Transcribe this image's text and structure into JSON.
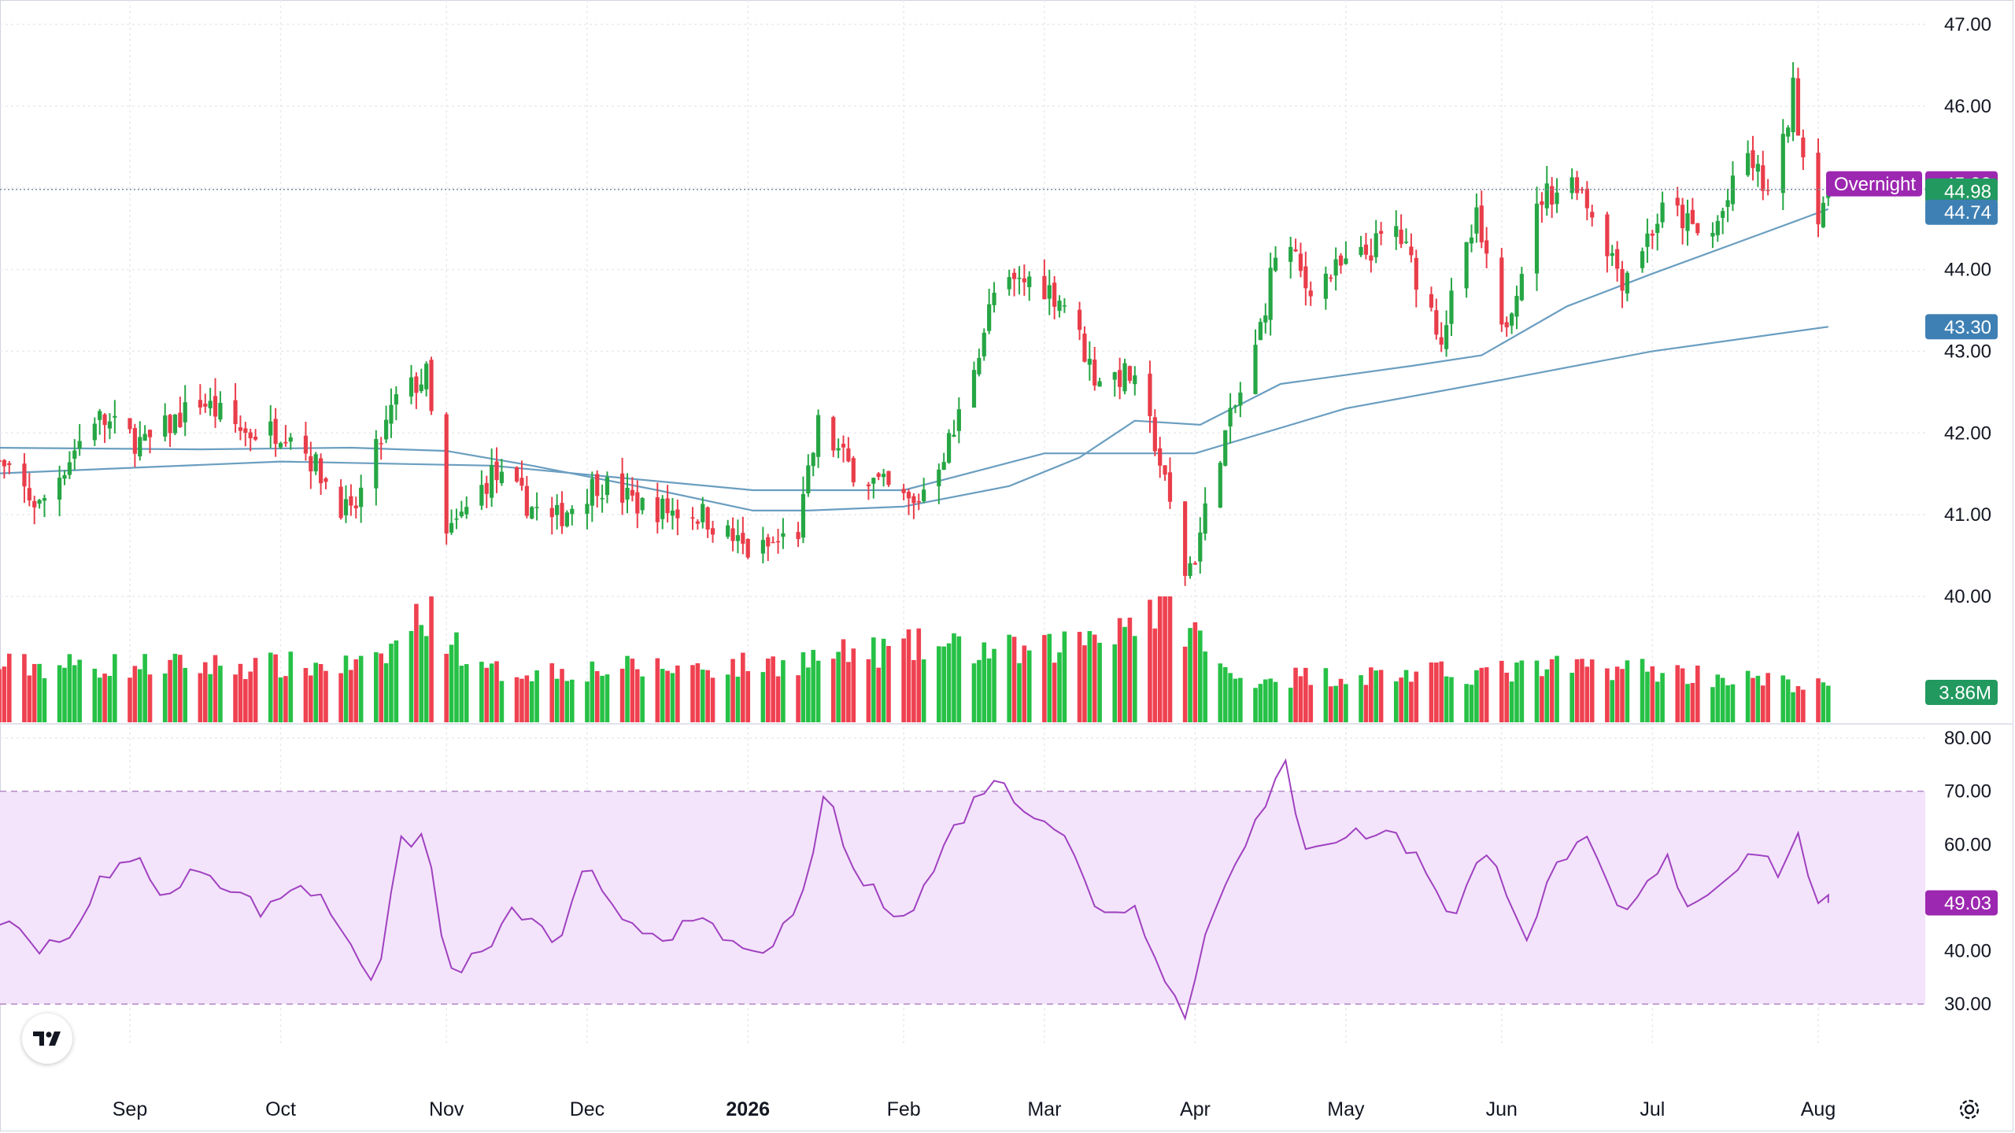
{
  "colors": {
    "up": "#26a644",
    "down": "#e93d4a",
    "volume_up": "#26c146",
    "volume_down": "#ef4150",
    "ma": "#6a9ec0",
    "rsi": "#a041c0",
    "rsi_band": "#f3e4fb",
    "overnight_badge": "#9c27b0",
    "close_badge": "#22995f",
    "ma_badge": "#3f80b4",
    "grid": "#e8eaee"
  },
  "icons": {
    "logo": "tradingview-logo-icon",
    "settings": "gear-icon"
  },
  "chart_data": [
    {
      "type": "candlestick",
      "panel": "price",
      "yaxis_ticks": [
        "47.00",
        "46.00",
        "45.00",
        "44.00",
        "43.00",
        "42.00",
        "41.00",
        "40.00"
      ],
      "ylim": [
        39.48,
        47.0
      ],
      "x_labels": [
        "Sep",
        "Oct",
        "Nov",
        "Dec",
        "2026",
        "Feb",
        "Mar",
        "Apr",
        "May",
        "Jun",
        "Jul",
        "Aug"
      ],
      "x_label_dates": [
        "2025-09-01",
        "2025-10-01",
        "2025-11-03",
        "2025-12-01",
        "2026-01-02",
        "2026-02-02",
        "2026-03-02",
        "2026-04-01",
        "2026-05-01",
        "2026-06-01",
        "2026-07-01",
        "2026-08-03"
      ],
      "x_range": [
        "2025-08-04",
        "2026-08-31"
      ],
      "price_path": [
        [
          "2025-08-04",
          41.7
        ],
        [
          "2025-08-14",
          41.1
        ],
        [
          "2025-08-25",
          42.2
        ],
        [
          "2025-09-04",
          41.85
        ],
        [
          "2025-09-15",
          42.4
        ],
        [
          "2025-09-24",
          42.0
        ],
        [
          "2025-10-03",
          42.05
        ],
        [
          "2025-10-15",
          40.95
        ],
        [
          "2025-10-24",
          42.4
        ],
        [
          "2025-10-30",
          42.7
        ],
        [
          "2025-11-03",
          40.7
        ],
        [
          "2025-11-12",
          41.5
        ],
        [
          "2025-11-24",
          40.9
        ],
        [
          "2025-12-03",
          41.4
        ],
        [
          "2025-12-12",
          41.1
        ],
        [
          "2025-12-24",
          41.0
        ],
        [
          "2026-01-03",
          40.5
        ],
        [
          "2026-01-12",
          40.8
        ],
        [
          "2026-01-16",
          42.1
        ],
        [
          "2026-01-22",
          41.6
        ],
        [
          "2026-02-04",
          41.1
        ],
        [
          "2026-02-12",
          42.0
        ],
        [
          "2026-02-20",
          43.7
        ],
        [
          "2026-02-28",
          43.9
        ],
        [
          "2026-03-06",
          43.6
        ],
        [
          "2026-03-12",
          42.7
        ],
        [
          "2026-03-19",
          42.7
        ],
        [
          "2026-03-24",
          41.9
        ],
        [
          "2026-03-30",
          40.3
        ],
        [
          "2026-04-01",
          40.5
        ],
        [
          "2026-04-06",
          41.8
        ],
        [
          "2026-04-13",
          43.0
        ],
        [
          "2026-04-18",
          44.5
        ],
        [
          "2026-04-23",
          43.8
        ],
        [
          "2026-05-03",
          44.1
        ],
        [
          "2026-05-11",
          44.5
        ],
        [
          "2026-05-20",
          43.2
        ],
        [
          "2026-05-27",
          44.6
        ],
        [
          "2026-06-01",
          43.2
        ],
        [
          "2026-06-09",
          44.9
        ],
        [
          "2026-06-16",
          45.1
        ],
        [
          "2026-06-25",
          43.9
        ],
        [
          "2026-07-04",
          44.8
        ],
        [
          "2026-07-12",
          44.3
        ],
        [
          "2026-07-20",
          45.4
        ],
        [
          "2026-07-25",
          44.8
        ],
        [
          "2026-07-29",
          46.2
        ],
        [
          "2026-08-02",
          44.6
        ],
        [
          "2026-08-05",
          44.98
        ]
      ],
      "moving_averages": [
        {
          "period": "50",
          "last_value": "44.74",
          "points": [
            [
              "2025-08-04",
              41.82
            ],
            [
              "2025-09-15",
              41.8
            ],
            [
              "2025-10-15",
              41.82
            ],
            [
              "2025-11-03",
              41.78
            ],
            [
              "2025-11-20",
              41.6
            ],
            [
              "2025-12-15",
              41.3
            ],
            [
              "2026-01-03",
              41.05
            ],
            [
              "2026-01-14",
              41.05
            ],
            [
              "2026-02-02",
              41.1
            ],
            [
              "2026-02-23",
              41.35
            ],
            [
              "2026-03-09",
              41.7
            ],
            [
              "2026-03-20",
              42.15
            ],
            [
              "2026-04-02",
              42.1
            ],
            [
              "2026-04-18",
              42.6
            ],
            [
              "2026-05-14",
              42.82
            ],
            [
              "2026-05-28",
              42.95
            ],
            [
              "2026-06-14",
              43.55
            ],
            [
              "2026-07-01",
              43.95
            ],
            [
              "2026-07-21",
              44.4
            ],
            [
              "2026-08-05",
              44.74
            ]
          ]
        },
        {
          "period": "200",
          "last_value": "43.30",
          "points": [
            [
              "2025-08-04",
              41.5
            ],
            [
              "2025-10-01",
              41.65
            ],
            [
              "2025-11-12",
              41.6
            ],
            [
              "2026-01-03",
              41.3
            ],
            [
              "2026-02-02",
              41.3
            ],
            [
              "2026-03-02",
              41.75
            ],
            [
              "2026-04-01",
              41.75
            ],
            [
              "2026-05-01",
              42.3
            ],
            [
              "2026-06-01",
              42.65
            ],
            [
              "2026-07-01",
              43.0
            ],
            [
              "2026-08-05",
              43.3
            ]
          ]
        }
      ],
      "last_close": "44.98",
      "overnight_label": "Overnight",
      "overnight_price": "45.03"
    },
    {
      "type": "bar",
      "panel": "volume",
      "last_volume": "3.86M",
      "relative_volume_path": [
        [
          "2025-08-04",
          0.45
        ],
        [
          "2025-10-20",
          0.45
        ],
        [
          "2025-10-30",
          0.9
        ],
        [
          "2025-11-10",
          0.4
        ],
        [
          "2026-01-03",
          0.45
        ],
        [
          "2026-02-05",
          0.6
        ],
        [
          "2026-03-01",
          0.55
        ],
        [
          "2026-03-27",
          0.95
        ],
        [
          "2026-04-08",
          0.35
        ],
        [
          "2026-06-01",
          0.4
        ],
        [
          "2026-06-22",
          0.45
        ],
        [
          "2026-08-05",
          0.28
        ]
      ]
    },
    {
      "type": "line",
      "panel": "rsi",
      "yaxis_ticks": [
        "80.00",
        "70.00",
        "60.00",
        "50.00",
        "40.00",
        "30.00"
      ],
      "ylim": [
        23,
        82
      ],
      "band": [
        30,
        70
      ],
      "last_value": "49.03",
      "points": [
        [
          "2025-08-04",
          47
        ],
        [
          "2025-08-14",
          41
        ],
        [
          "2025-08-22",
          44
        ],
        [
          "2025-08-27",
          55
        ],
        [
          "2025-09-04",
          57
        ],
        [
          "2025-09-08",
          49
        ],
        [
          "2025-09-15",
          56
        ],
        [
          "2025-09-21",
          52
        ],
        [
          "2025-09-28",
          47
        ],
        [
          "2025-10-04",
          53
        ],
        [
          "2025-10-10",
          49
        ],
        [
          "2025-10-20",
          34
        ],
        [
          "2025-10-25",
          60
        ],
        [
          "2025-10-30",
          62
        ],
        [
          "2025-11-03",
          36
        ],
        [
          "2025-11-10",
          39
        ],
        [
          "2025-11-17",
          48
        ],
        [
          "2025-11-25",
          41
        ],
        [
          "2025-12-01",
          56
        ],
        [
          "2025-12-05",
          48
        ],
        [
          "2025-12-15",
          43
        ],
        [
          "2025-12-24",
          45
        ],
        [
          "2026-01-03",
          39
        ],
        [
          "2026-01-12",
          46
        ],
        [
          "2026-01-16",
          64
        ],
        [
          "2026-01-18",
          71
        ],
        [
          "2026-01-22",
          56
        ],
        [
          "2026-01-30",
          48
        ],
        [
          "2026-02-04",
          48
        ],
        [
          "2026-02-12",
          63
        ],
        [
          "2026-02-20",
          73
        ],
        [
          "2026-02-24",
          68
        ],
        [
          "2026-03-01",
          66
        ],
        [
          "2026-03-06",
          62
        ],
        [
          "2026-03-12",
          48
        ],
        [
          "2026-03-20",
          48
        ],
        [
          "2026-03-24",
          40
        ],
        [
          "2026-03-30",
          27
        ],
        [
          "2026-04-02",
          40
        ],
        [
          "2026-04-08",
          56
        ],
        [
          "2026-04-15",
          67
        ],
        [
          "2026-04-19",
          75
        ],
        [
          "2026-04-22",
          60
        ],
        [
          "2026-05-03",
          62
        ],
        [
          "2026-05-11",
          62
        ],
        [
          "2026-05-18",
          54
        ],
        [
          "2026-05-22",
          46
        ],
        [
          "2026-05-28",
          58
        ],
        [
          "2026-06-01",
          54
        ],
        [
          "2026-06-06",
          43
        ],
        [
          "2026-06-13",
          58
        ],
        [
          "2026-06-18",
          60
        ],
        [
          "2026-06-25",
          46
        ],
        [
          "2026-07-04",
          57
        ],
        [
          "2026-07-08",
          49
        ],
        [
          "2026-07-14",
          52
        ],
        [
          "2026-07-21",
          60
        ],
        [
          "2026-07-26",
          55
        ],
        [
          "2026-07-30",
          61
        ],
        [
          "2026-08-02",
          52
        ],
        [
          "2026-08-04",
          48
        ],
        [
          "2026-08-05",
          49.03
        ]
      ]
    }
  ]
}
